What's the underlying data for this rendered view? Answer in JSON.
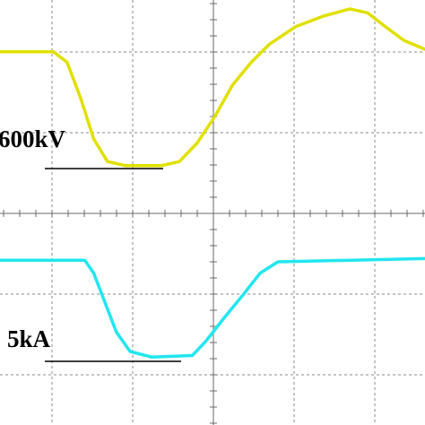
{
  "chart_data": {
    "type": "line",
    "xlim": [
      -2.64,
      2.62
    ],
    "ylim": [
      -2.62,
      2.64
    ],
    "series": [
      {
        "color": "#e0e000",
        "x": [
          -2.64,
          -1.98,
          -1.81,
          -1.64,
          -1.48,
          -1.31,
          -1.09,
          -0.64,
          -0.42,
          -0.2,
          0.02,
          0.24,
          0.47,
          0.69,
          1.02,
          1.36,
          1.69,
          1.91,
          2.13,
          2.36,
          2.62
        ],
        "values": [
          2.0,
          2.0,
          1.87,
          1.42,
          0.92,
          0.64,
          0.59,
          0.59,
          0.64,
          0.87,
          1.2,
          1.59,
          1.87,
          2.09,
          2.31,
          2.44,
          2.53,
          2.48,
          2.31,
          2.14,
          2.03
        ]
      },
      {
        "color": "#22e6f0",
        "x": [
          -2.64,
          -1.59,
          -1.48,
          -1.33,
          -1.2,
          -1.03,
          -0.76,
          -0.26,
          -0.09,
          0.13,
          0.36,
          0.58,
          0.8,
          2.62
        ],
        "values": [
          -0.58,
          -0.58,
          -0.74,
          -1.13,
          -1.47,
          -1.71,
          -1.78,
          -1.76,
          -1.58,
          -1.3,
          -1.02,
          -0.74,
          -0.6,
          -0.56
        ]
      }
    ],
    "annotations": [
      "600kV",
      "5kA"
    ]
  }
}
